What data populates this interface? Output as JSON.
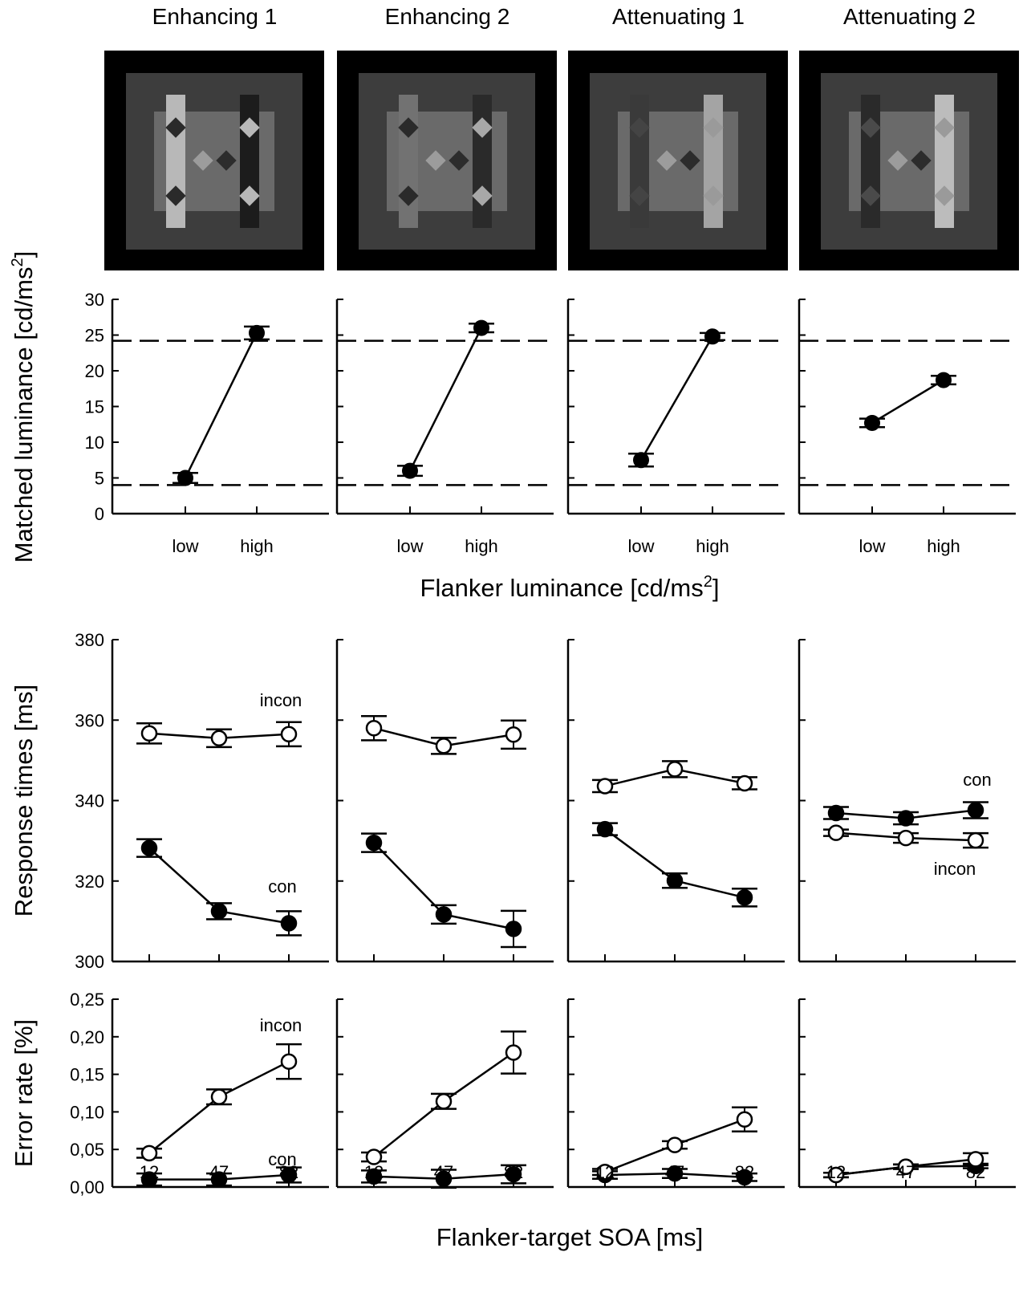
{
  "column_titles": [
    "Enhancing 1",
    "Enhancing 2",
    "Attenuating 1",
    "Attenuating 2"
  ],
  "stimuli": [
    {
      "left_bar": "#b8b8b8",
      "right_bar": "#1c1c1c",
      "left_diamond": "#2a2a2a",
      "right_diamond": "#b8b8b8"
    },
    {
      "left_bar": "#727272",
      "right_bar": "#2a2a2a",
      "left_diamond": "#2a2a2a",
      "right_diamond": "#a8a8a8"
    },
    {
      "left_bar": "#3a3a3a",
      "right_bar": "#a4a4a4",
      "left_diamond": "#444444",
      "right_diamond": "#9a9a9a"
    },
    {
      "left_bar": "#2a2a2a",
      "right_bar": "#bcbcbc",
      "left_diamond": "#4a4a4a",
      "right_diamond": "#9a9a9a"
    }
  ],
  "panel_colors": {
    "frame": "#000000",
    "outer": "#3d3d3d",
    "inner": "#6a6a6a",
    "center_light": "#9c9c9c",
    "center_dark": "#2c2c2c"
  },
  "chart_data": [
    {
      "type": "line",
      "name": "matching",
      "xlabel": "Flanker luminance [cd/ms",
      "xlabel_sup": "2",
      "xlabel_end": "]",
      "ylabel": "Matched luminance [cd/ms",
      "ylabel_sup": "2",
      "ylabel_end": "]",
      "categories": [
        "low",
        "high"
      ],
      "ylim": [
        0,
        30
      ],
      "yticks": [
        "0",
        "5",
        "10",
        "15",
        "20",
        "25",
        "30"
      ],
      "reference_lines": [
        4,
        24.2
      ],
      "panels": [
        {
          "values": [
            5.0,
            25.3
          ],
          "errors": [
            0.7,
            0.9
          ]
        },
        {
          "values": [
            6.0,
            26.0
          ],
          "errors": [
            0.7,
            0.6
          ]
        },
        {
          "values": [
            7.5,
            24.8
          ],
          "errors": [
            0.9,
            0.5
          ]
        },
        {
          "values": [
            12.7,
            18.7
          ],
          "errors": [
            0.6,
            0.6
          ]
        }
      ]
    },
    {
      "type": "line",
      "name": "response_times",
      "ylabel": "Response times [ms]",
      "x": [
        "12",
        "47",
        "82"
      ],
      "ylim": [
        300,
        380
      ],
      "yticks": [
        "300",
        "320",
        "340",
        "360",
        "380"
      ],
      "panels": [
        {
          "inc": [
            356.7,
            355.5,
            356.5
          ],
          "inc_err": [
            2.5,
            2.2,
            3.0
          ],
          "con": [
            328.2,
            312.5,
            309.5
          ],
          "con_err": [
            2.2,
            2.0,
            3.0
          ],
          "label_inc": "incon",
          "label_con": "con"
        },
        {
          "inc": [
            358.0,
            353.6,
            356.4
          ],
          "inc_err": [
            3.0,
            2.0,
            3.5
          ],
          "con": [
            329.5,
            311.7,
            308.1
          ],
          "con_err": [
            2.3,
            2.3,
            4.5
          ]
        },
        {
          "inc": [
            343.6,
            347.8,
            344.3
          ],
          "inc_err": [
            1.5,
            2.0,
            1.5
          ],
          "con": [
            332.9,
            320.1,
            315.9
          ],
          "con_err": [
            1.5,
            1.8,
            2.2
          ]
        },
        {
          "inc": [
            332.0,
            330.7,
            330.1
          ],
          "inc_err": [
            0.8,
            1.2,
            1.8
          ],
          "con": [
            336.9,
            335.6,
            337.6
          ],
          "con_err": [
            1.5,
            1.5,
            2.0
          ],
          "label_con": "con",
          "label_inc": "incon"
        }
      ]
    },
    {
      "type": "line",
      "name": "error_rate",
      "ylabel": "Error rate [%]",
      "xlabel": "Flanker-target SOA [ms]",
      "x": [
        "12",
        "47",
        "82"
      ],
      "ylim": [
        0,
        0.25
      ],
      "yticks": [
        "0,00",
        "0,05",
        "0,10",
        "0,15",
        "0,20",
        "0,25"
      ],
      "panels": [
        {
          "inc": [
            0.045,
            0.12,
            0.167
          ],
          "inc_err": [
            0.006,
            0.01,
            0.023
          ],
          "con": [
            0.01,
            0.01,
            0.016
          ],
          "con_err": [
            0.008,
            0.008,
            0.01
          ],
          "label_inc": "incon",
          "label_con": "con"
        },
        {
          "inc": [
            0.04,
            0.114,
            0.179
          ],
          "inc_err": [
            0.006,
            0.01,
            0.028
          ],
          "con": [
            0.014,
            0.011,
            0.017
          ],
          "con_err": [
            0.008,
            0.012,
            0.012
          ]
        },
        {
          "inc": [
            0.02,
            0.056,
            0.09
          ],
          "inc_err": [
            0.004,
            0.005,
            0.016
          ],
          "con": [
            0.016,
            0.018,
            0.013
          ],
          "con_err": [
            0.005,
            0.006,
            0.005
          ]
        },
        {
          "inc": [
            0.016,
            0.027,
            0.037
          ],
          "inc_err": [
            0.003,
            0.003,
            0.008
          ],
          "con": [
            0.016,
            0.027,
            0.028
          ],
          "con_err": [
            0.003,
            0.003,
            0.003
          ]
        }
      ]
    }
  ]
}
